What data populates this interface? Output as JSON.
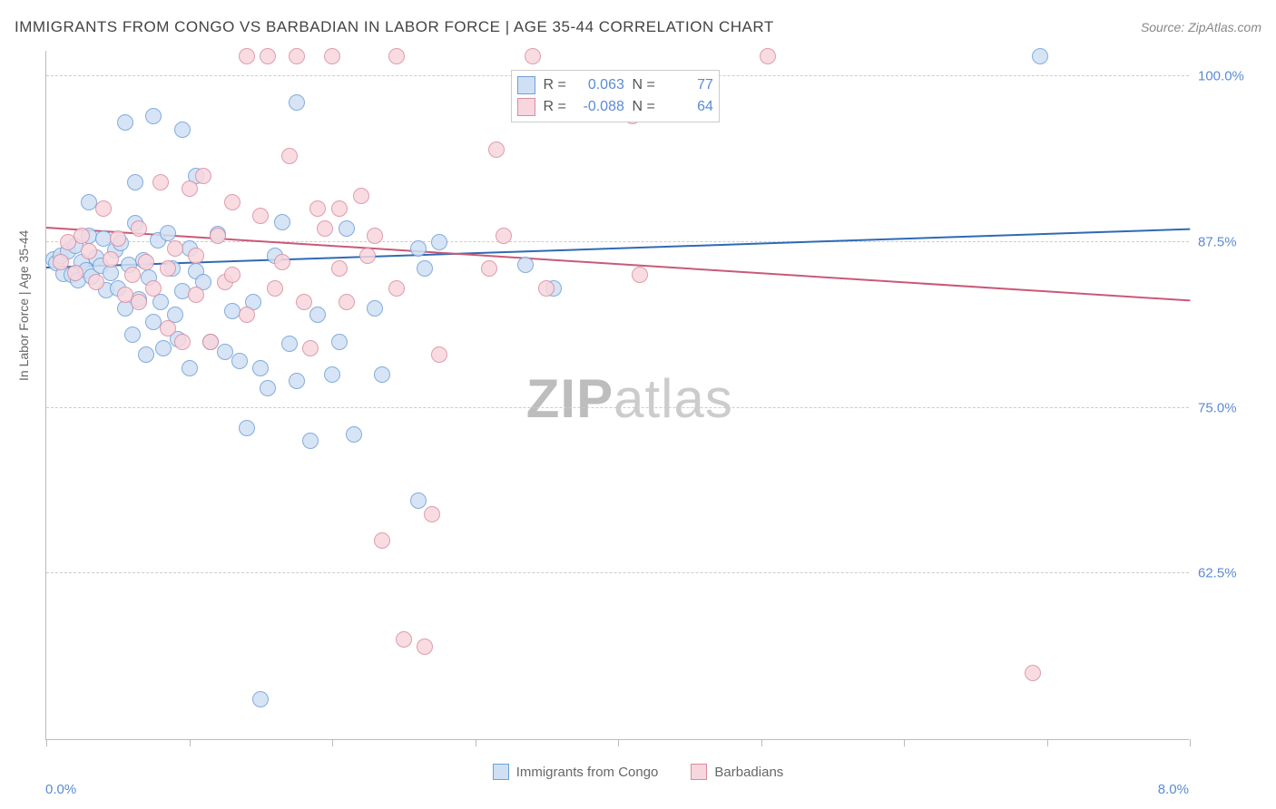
{
  "header": {
    "title": "IMMIGRANTS FROM CONGO VS BARBADIAN IN LABOR FORCE | AGE 35-44 CORRELATION CHART",
    "source": "Source: ZipAtlas.com"
  },
  "chart": {
    "type": "scatter",
    "y_axis_label": "In Labor Force | Age 35-44",
    "xlim": [
      0.0,
      8.0
    ],
    "ylim": [
      50.0,
      102.0
    ],
    "x_ticks": [
      0,
      1,
      2,
      3,
      4,
      5,
      6,
      7,
      8
    ],
    "y_ticks": [
      {
        "v": 62.5,
        "label": "62.5%"
      },
      {
        "v": 75.0,
        "label": "75.0%"
      },
      {
        "v": 87.5,
        "label": "87.5%"
      },
      {
        "v": 100.0,
        "label": "100.0%"
      }
    ],
    "x_min_label": "0.0%",
    "x_max_label": "8.0%",
    "background_color": "#ffffff",
    "grid_color": "#cccccc",
    "axis_color": "#bbbbbb",
    "marker_radius": 9,
    "marker_border_width": 1.5,
    "trend_line_width": 2,
    "watermark": {
      "zip": "ZIP",
      "atlas": "atlas",
      "color": "#cccccc",
      "fontsize": 60
    },
    "stats_box": {
      "rows": [
        {
          "color_fill": "#cfe0f4",
          "color_stroke": "#6d9fd8",
          "r_label": "R =",
          "r_value": "0.063",
          "n_label": "N =",
          "n_value": "77"
        },
        {
          "color_fill": "#f7d6de",
          "color_stroke": "#d98ca0",
          "r_label": "R =",
          "r_value": "-0.088",
          "n_label": "N =",
          "n_value": "64"
        }
      ],
      "position_x": 3.25,
      "position_y": 100.5
    },
    "series": [
      {
        "name": "Immigrants from Congo",
        "color_fill": "#cfe0f4",
        "color_stroke": "#6d9fd8",
        "trend": {
          "x1": 0.0,
          "y1": 85.5,
          "x2": 8.0,
          "y2": 88.4,
          "color": "#2f6ab5"
        },
        "points": [
          [
            0.05,
            86.2
          ],
          [
            0.07,
            85.9
          ],
          [
            0.1,
            86.5
          ],
          [
            0.12,
            85.1
          ],
          [
            0.15,
            86.8
          ],
          [
            0.18,
            85.0
          ],
          [
            0.2,
            87.2
          ],
          [
            0.22,
            84.6
          ],
          [
            0.25,
            86.0
          ],
          [
            0.28,
            85.4
          ],
          [
            0.3,
            88.0
          ],
          [
            0.32,
            84.9
          ],
          [
            0.35,
            86.3
          ],
          [
            0.38,
            85.7
          ],
          [
            0.4,
            87.8
          ],
          [
            0.42,
            83.9
          ],
          [
            0.45,
            85.2
          ],
          [
            0.48,
            86.9
          ],
          [
            0.5,
            84.0
          ],
          [
            0.52,
            87.4
          ],
          [
            0.55,
            82.5
          ],
          [
            0.55,
            96.5
          ],
          [
            0.58,
            85.8
          ],
          [
            0.6,
            80.5
          ],
          [
            0.62,
            88.9
          ],
          [
            0.62,
            92.0
          ],
          [
            0.65,
            83.2
          ],
          [
            0.68,
            86.1
          ],
          [
            0.7,
            79.0
          ],
          [
            0.72,
            84.8
          ],
          [
            0.75,
            81.5
          ],
          [
            0.75,
            97.0
          ],
          [
            0.78,
            87.6
          ],
          [
            0.8,
            83.0
          ],
          [
            0.82,
            79.5
          ],
          [
            0.85,
            88.2
          ],
          [
            0.88,
            85.5
          ],
          [
            0.9,
            82.0
          ],
          [
            0.92,
            80.2
          ],
          [
            0.95,
            83.8
          ],
          [
            0.95,
            96.0
          ],
          [
            1.0,
            78.0
          ],
          [
            1.0,
            87.0
          ],
          [
            1.05,
            85.3
          ],
          [
            1.05,
            92.5
          ],
          [
            1.1,
            84.5
          ],
          [
            1.15,
            80.0
          ],
          [
            1.2,
            88.1
          ],
          [
            1.25,
            79.2
          ],
          [
            1.3,
            82.3
          ],
          [
            1.35,
            78.5
          ],
          [
            1.4,
            73.5
          ],
          [
            1.45,
            83.0
          ],
          [
            1.5,
            78.0
          ],
          [
            1.55,
            76.5
          ],
          [
            1.5,
            53.0
          ],
          [
            1.6,
            86.5
          ],
          [
            1.65,
            89.0
          ],
          [
            1.7,
            79.8
          ],
          [
            1.75,
            77.0
          ],
          [
            1.75,
            98.0
          ],
          [
            1.85,
            72.5
          ],
          [
            1.9,
            82.0
          ],
          [
            2.0,
            77.5
          ],
          [
            2.05,
            80.0
          ],
          [
            2.1,
            88.5
          ],
          [
            2.15,
            73.0
          ],
          [
            2.3,
            82.5
          ],
          [
            2.35,
            77.5
          ],
          [
            2.6,
            87.0
          ],
          [
            2.6,
            68.0
          ],
          [
            2.65,
            85.5
          ],
          [
            2.75,
            87.5
          ],
          [
            3.35,
            85.8
          ],
          [
            3.55,
            84.0
          ],
          [
            6.95,
            101.5
          ],
          [
            0.3,
            90.5
          ]
        ]
      },
      {
        "name": "Barbadians",
        "color_fill": "#f7d6de",
        "color_stroke": "#d98ca0",
        "trend": {
          "x1": 0.0,
          "y1": 88.5,
          "x2": 8.0,
          "y2": 83.0,
          "color": "#c85a78"
        },
        "points": [
          [
            0.1,
            86.0
          ],
          [
            0.15,
            87.5
          ],
          [
            0.2,
            85.2
          ],
          [
            0.25,
            88.0
          ],
          [
            0.3,
            86.8
          ],
          [
            0.35,
            84.5
          ],
          [
            0.4,
            90.0
          ],
          [
            0.45,
            86.2
          ],
          [
            0.5,
            87.8
          ],
          [
            0.55,
            83.5
          ],
          [
            0.6,
            85.0
          ],
          [
            0.65,
            88.5
          ],
          [
            0.65,
            83.0
          ],
          [
            0.7,
            86.0
          ],
          [
            0.75,
            84.0
          ],
          [
            0.8,
            92.0
          ],
          [
            0.85,
            85.5
          ],
          [
            0.85,
            81.0
          ],
          [
            0.9,
            87.0
          ],
          [
            0.95,
            80.0
          ],
          [
            1.0,
            91.5
          ],
          [
            1.05,
            86.5
          ],
          [
            1.05,
            83.5
          ],
          [
            1.1,
            92.5
          ],
          [
            1.15,
            80.0
          ],
          [
            1.2,
            88.0
          ],
          [
            1.25,
            84.5
          ],
          [
            1.3,
            90.5
          ],
          [
            1.3,
            85.0
          ],
          [
            1.4,
            82.0
          ],
          [
            1.4,
            101.5
          ],
          [
            1.5,
            89.5
          ],
          [
            1.55,
            101.5
          ],
          [
            1.6,
            84.0
          ],
          [
            1.65,
            86.0
          ],
          [
            1.7,
            94.0
          ],
          [
            1.75,
            101.5
          ],
          [
            1.8,
            83.0
          ],
          [
            1.85,
            79.5
          ],
          [
            1.9,
            90.0
          ],
          [
            1.95,
            88.5
          ],
          [
            2.0,
            101.5
          ],
          [
            2.05,
            85.5
          ],
          [
            2.05,
            90.0
          ],
          [
            2.1,
            83.0
          ],
          [
            2.2,
            91.0
          ],
          [
            2.25,
            86.5
          ],
          [
            2.3,
            88.0
          ],
          [
            2.45,
            101.5
          ],
          [
            2.45,
            84.0
          ],
          [
            2.5,
            57.5
          ],
          [
            2.65,
            57.0
          ],
          [
            2.7,
            67.0
          ],
          [
            2.75,
            79.0
          ],
          [
            3.1,
            85.5
          ],
          [
            3.15,
            94.5
          ],
          [
            3.2,
            88.0
          ],
          [
            3.4,
            101.5
          ],
          [
            3.5,
            84.0
          ],
          [
            4.1,
            97.0
          ],
          [
            4.15,
            85.0
          ],
          [
            5.05,
            101.5
          ],
          [
            6.9,
            55.0
          ],
          [
            2.35,
            65.0
          ]
        ]
      }
    ],
    "bottom_legend": [
      {
        "label": "Immigrants from Congo",
        "fill": "#cfe0f4",
        "stroke": "#6d9fd8"
      },
      {
        "label": "Barbadians",
        "fill": "#f7d6de",
        "stroke": "#d98ca0"
      }
    ]
  }
}
